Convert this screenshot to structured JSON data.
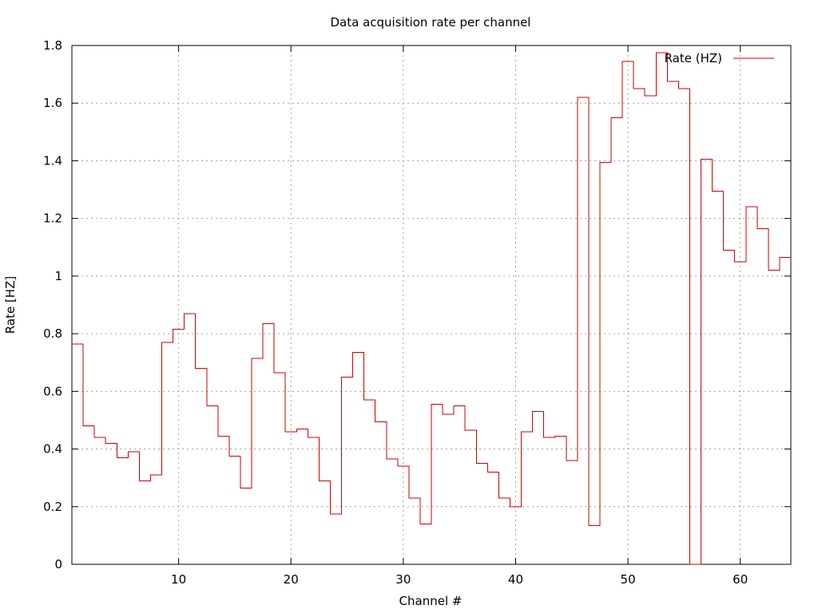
{
  "chart_data": {
    "type": "line",
    "plot_style": "step",
    "title": "Data acquisition rate per channel",
    "xlabel": "Channel #",
    "ylabel": "Rate [HZ]",
    "xlim": [
      0.5,
      64.5
    ],
    "ylim": [
      0,
      1.8
    ],
    "x_ticks": [
      10,
      20,
      30,
      40,
      50,
      60
    ],
    "y_ticks": [
      0,
      0.2,
      0.4,
      0.6,
      0.8,
      1,
      1.2,
      1.4,
      1.6,
      1.8
    ],
    "x_tick_labels": [
      "10",
      "20",
      "30",
      "40",
      "50",
      "60"
    ],
    "y_tick_labels": [
      "0",
      "0.2",
      "0.4",
      "0.6",
      "0.8",
      "1",
      "1.2",
      "1.4",
      "1.6",
      "1.8"
    ],
    "grid": true,
    "legend_position": "top-right",
    "series": [
      {
        "name": "Rate (HZ)",
        "color": "#cc0000",
        "x": [
          1,
          2,
          3,
          4,
          5,
          6,
          7,
          8,
          9,
          10,
          11,
          12,
          13,
          14,
          15,
          16,
          17,
          18,
          19,
          20,
          21,
          22,
          23,
          24,
          25,
          26,
          27,
          28,
          29,
          30,
          31,
          32,
          33,
          34,
          35,
          36,
          37,
          38,
          39,
          40,
          41,
          42,
          43,
          44,
          45,
          46,
          47,
          48,
          49,
          50,
          51,
          52,
          53,
          54,
          55,
          56,
          57,
          58,
          59,
          60,
          61,
          62,
          63,
          64
        ],
        "values": [
          0.765,
          0.48,
          0.44,
          0.42,
          0.37,
          0.39,
          0.29,
          0.31,
          0.77,
          0.815,
          0.87,
          0.68,
          0.55,
          0.445,
          0.375,
          0.265,
          0.715,
          0.835,
          0.665,
          0.46,
          0.47,
          0.44,
          0.29,
          0.175,
          0.65,
          0.735,
          0.57,
          0.495,
          0.365,
          0.34,
          0.23,
          0.14,
          0.555,
          0.52,
          0.55,
          0.465,
          0.35,
          0.32,
          0.23,
          0.2,
          0.46,
          0.53,
          0.44,
          0.445,
          0.36,
          1.62,
          0.135,
          1.395,
          1.55,
          1.745,
          1.65,
          1.625,
          1.775,
          1.675,
          1.65,
          0,
          1.405,
          1.295,
          1.09,
          1.05,
          1.24,
          1.165,
          1.02,
          1.065
        ]
      }
    ]
  }
}
